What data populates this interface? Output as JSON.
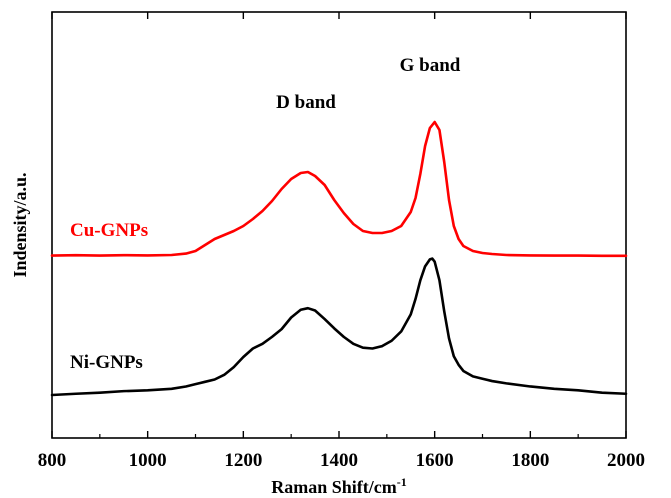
{
  "chart_data": {
    "type": "line",
    "title": "",
    "xlabel": "Raman Shift/cm",
    "xlabel_superscript": "-1",
    "ylabel": "Indensity/a.u.",
    "xlim": [
      800,
      2000
    ],
    "xticks": [
      800,
      1000,
      1200,
      1400,
      1600,
      1800,
      2000
    ],
    "y_axis_ticks": "none",
    "grid": false,
    "legend": "none",
    "annotations": [
      {
        "text": "D band",
        "x": 1340
      },
      {
        "text": "G band",
        "x": 1600
      }
    ],
    "series": [
      {
        "name": "Cu-GNPs",
        "color": "#ff0000",
        "x": [
          800,
          850,
          900,
          950,
          1000,
          1050,
          1080,
          1100,
          1120,
          1140,
          1160,
          1180,
          1200,
          1220,
          1240,
          1260,
          1280,
          1300,
          1320,
          1335,
          1350,
          1370,
          1390,
          1410,
          1430,
          1450,
          1470,
          1490,
          1510,
          1530,
          1550,
          1560,
          1570,
          1580,
          1590,
          1600,
          1610,
          1620,
          1630,
          1640,
          1650,
          1660,
          1680,
          1700,
          1720,
          1750,
          1800,
          1850,
          1900,
          1950,
          2000
        ],
        "values": [
          0.2,
          0.4,
          0.2,
          0.4,
          0.3,
          0.5,
          1.2,
          2.5,
          5.5,
          8.5,
          10.5,
          12.5,
          15.0,
          18.5,
          22.5,
          27.5,
          33.5,
          38.5,
          41.5,
          42.0,
          40.0,
          35.5,
          28.0,
          21.5,
          16.0,
          12.5,
          11.5,
          11.5,
          12.5,
          15.0,
          22.0,
          29.0,
          41.0,
          55.0,
          64.0,
          67.0,
          63.0,
          47.0,
          28.0,
          15.0,
          8.5,
          5.0,
          2.5,
          1.5,
          1.0,
          0.5,
          0.3,
          0.2,
          0.2,
          0.1,
          0.1
        ]
      },
      {
        "name": "Ni-GNPs",
        "color": "#000000",
        "x": [
          800,
          850,
          900,
          950,
          1000,
          1050,
          1080,
          1100,
          1120,
          1140,
          1160,
          1180,
          1200,
          1220,
          1240,
          1260,
          1280,
          1300,
          1320,
          1335,
          1350,
          1370,
          1390,
          1410,
          1430,
          1450,
          1470,
          1490,
          1510,
          1530,
          1550,
          1560,
          1570,
          1580,
          1590,
          1595,
          1600,
          1610,
          1620,
          1630,
          1640,
          1650,
          1660,
          1680,
          1700,
          1720,
          1750,
          1800,
          1850,
          1900,
          1950,
          2000
        ],
        "values": [
          0.0,
          0.8,
          1.5,
          2.5,
          3.0,
          4.0,
          5.5,
          7.0,
          8.5,
          10.0,
          13.0,
          18.0,
          24.5,
          30.0,
          33.0,
          37.5,
          42.5,
          50.0,
          55.0,
          56.0,
          54.5,
          49.0,
          43.0,
          37.5,
          33.0,
          30.5,
          30.0,
          31.5,
          35.0,
          41.0,
          52.0,
          62.0,
          74.0,
          83.0,
          87.5,
          88.0,
          86.0,
          74.0,
          54.0,
          36.5,
          25.0,
          19.5,
          15.5,
          12.0,
          10.5,
          9.0,
          7.5,
          5.5,
          4.0,
          3.0,
          1.5,
          0.8
        ]
      }
    ]
  }
}
